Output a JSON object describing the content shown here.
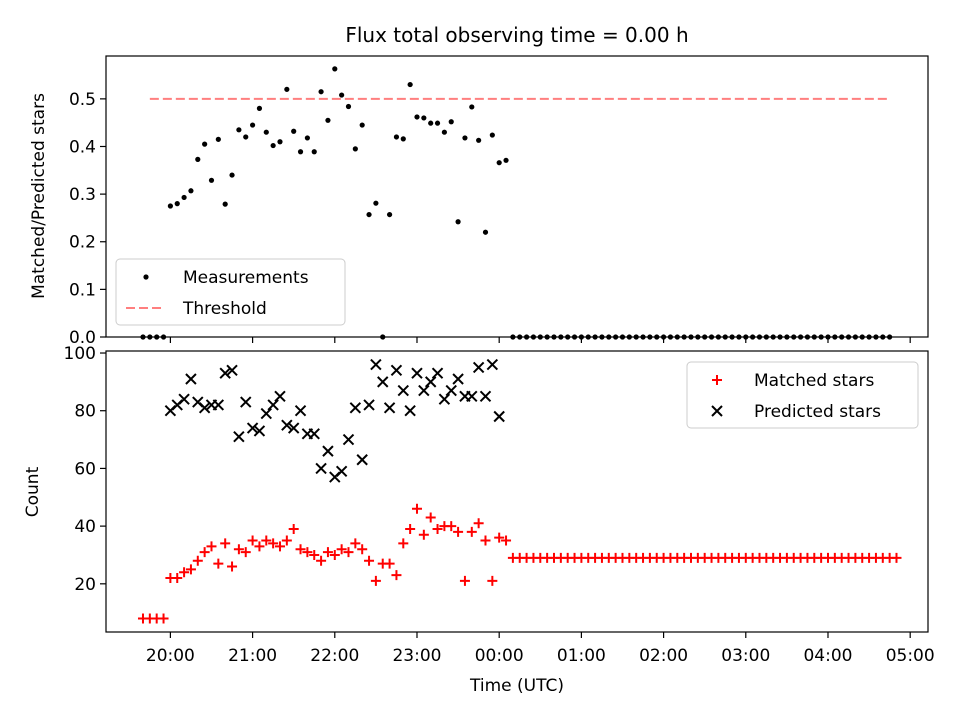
{
  "chart_data": [
    {
      "type": "scatter",
      "title": "Flux total observing time = 0.00 h",
      "xlabel": "",
      "ylabel": "Matched/Predicted stars",
      "ylim": [
        0,
        0.59
      ],
      "xlim": [
        "19:13",
        "05:13"
      ],
      "yticks": [
        "0.0",
        "0.1",
        "0.2",
        "0.3",
        "0.4",
        "0.5"
      ],
      "legend": {
        "placement": "lower-left",
        "entries": [
          "Measurements",
          "Threshold"
        ]
      },
      "series": [
        {
          "name": "Measurements",
          "marker": "dot",
          "color": "#000000",
          "points": [
            [
              "19:40",
              0.0
            ],
            [
              "19:45",
              0.0
            ],
            [
              "19:50",
              0.0
            ],
            [
              "19:55",
              0.0
            ],
            [
              "20:00",
              0.275
            ],
            [
              "20:05",
              0.28
            ],
            [
              "20:10",
              0.293
            ],
            [
              "20:15",
              0.307
            ],
            [
              "20:20",
              0.373
            ],
            [
              "20:25",
              0.405
            ],
            [
              "20:30",
              0.329
            ],
            [
              "20:35",
              0.415
            ],
            [
              "20:40",
              0.279
            ],
            [
              "20:45",
              0.34
            ],
            [
              "20:50",
              0.435
            ],
            [
              "20:55",
              0.42
            ],
            [
              "21:00",
              0.445
            ],
            [
              "21:05",
              0.48
            ],
            [
              "21:10",
              0.43
            ],
            [
              "21:15",
              0.402
            ],
            [
              "21:20",
              0.41
            ],
            [
              "21:25",
              0.52
            ],
            [
              "21:30",
              0.432
            ],
            [
              "21:35",
              0.389
            ],
            [
              "21:40",
              0.418
            ],
            [
              "21:45",
              0.389
            ],
            [
              "21:50",
              0.515
            ],
            [
              "21:55",
              0.455
            ],
            [
              "22:00",
              0.563
            ],
            [
              "22:05",
              0.508
            ],
            [
              "22:10",
              0.484
            ],
            [
              "22:15",
              0.395
            ],
            [
              "22:20",
              0.445
            ],
            [
              "22:25",
              0.257
            ],
            [
              "22:30",
              0.281
            ],
            [
              "22:35",
              0.0
            ],
            [
              "22:40",
              0.257
            ],
            [
              "22:45",
              0.42
            ],
            [
              "22:50",
              0.416
            ],
            [
              "22:55",
              0.53
            ],
            [
              "23:00",
              0.462
            ],
            [
              "23:05",
              0.46
            ],
            [
              "23:10",
              0.449
            ],
            [
              "23:15",
              0.449
            ],
            [
              "23:20",
              0.43
            ],
            [
              "23:25",
              0.452
            ],
            [
              "23:30",
              0.242
            ],
            [
              "23:35",
              0.418
            ],
            [
              "23:40",
              0.483
            ],
            [
              "23:45",
              0.413
            ],
            [
              "23:50",
              0.22
            ],
            [
              "23:55",
              0.424
            ],
            [
              "00:00",
              0.366
            ],
            [
              "00:05",
              0.371
            ]
          ],
          "constant_tail": {
            "start": "00:10",
            "end": "04:45",
            "step_minutes": 5,
            "value": 0.0
          }
        },
        {
          "name": "Threshold",
          "style": "dashed",
          "color": "#ff7f7f",
          "points": [
            [
              "19:45",
              0.5
            ],
            [
              "04:45",
              0.5
            ]
          ]
        }
      ]
    },
    {
      "type": "scatter",
      "title": "",
      "xlabel": "Time (UTC)",
      "ylabel": "Count",
      "ylim": [
        3.3,
        100.7
      ],
      "xlim": [
        "19:13",
        "05:13"
      ],
      "yticks": [
        "20",
        "40",
        "60",
        "80",
        "100"
      ],
      "xticks": [
        "20:00",
        "21:00",
        "22:00",
        "23:00",
        "00:00",
        "01:00",
        "02:00",
        "03:00",
        "04:00",
        "05:00"
      ],
      "legend": {
        "placement": "upper-right",
        "entries": [
          "Matched stars",
          "Predicted stars"
        ]
      },
      "series": [
        {
          "name": "Matched stars",
          "marker": "plus",
          "color": "#ff0000",
          "points": [
            [
              "19:40",
              8
            ],
            [
              "19:45",
              8
            ],
            [
              "19:50",
              8
            ],
            [
              "19:55",
              8
            ],
            [
              "20:00",
              22
            ],
            [
              "20:05",
              22
            ],
            [
              "20:10",
              24
            ],
            [
              "20:15",
              25
            ],
            [
              "20:20",
              28
            ],
            [
              "20:25",
              31
            ],
            [
              "20:30",
              33
            ],
            [
              "20:35",
              27
            ],
            [
              "20:40",
              34
            ],
            [
              "20:45",
              26
            ],
            [
              "20:50",
              32
            ],
            [
              "20:55",
              31
            ],
            [
              "21:00",
              35
            ],
            [
              "21:05",
              33
            ],
            [
              "21:10",
              35
            ],
            [
              "21:15",
              34
            ],
            [
              "21:20",
              33
            ],
            [
              "21:25",
              35
            ],
            [
              "21:30",
              39
            ],
            [
              "21:35",
              32
            ],
            [
              "21:40",
              31
            ],
            [
              "21:45",
              30
            ],
            [
              "21:50",
              28
            ],
            [
              "21:55",
              31
            ],
            [
              "22:00",
              30
            ],
            [
              "22:05",
              32
            ],
            [
              "22:10",
              31
            ],
            [
              "22:15",
              34
            ],
            [
              "22:20",
              32
            ],
            [
              "22:25",
              28
            ],
            [
              "22:30",
              21
            ],
            [
              "22:35",
              27
            ],
            [
              "22:40",
              27
            ],
            [
              "22:45",
              23
            ],
            [
              "22:50",
              34
            ],
            [
              "22:55",
              39
            ],
            [
              "23:00",
              46
            ],
            [
              "23:05",
              37
            ],
            [
              "23:10",
              43
            ],
            [
              "23:15",
              39
            ],
            [
              "23:20",
              40
            ],
            [
              "23:25",
              40
            ],
            [
              "23:30",
              38
            ],
            [
              "23:35",
              21
            ],
            [
              "23:40",
              38
            ],
            [
              "23:45",
              41
            ],
            [
              "23:50",
              35
            ],
            [
              "23:55",
              21
            ],
            [
              "00:00",
              36
            ],
            [
              "00:05",
              35
            ]
          ],
          "constant_tail": {
            "start": "00:10",
            "end": "04:50",
            "step_minutes": 5,
            "value": 29
          }
        },
        {
          "name": "Predicted stars",
          "marker": "x",
          "color": "#000000",
          "points": [
            [
              "20:00",
              80
            ],
            [
              "20:05",
              82
            ],
            [
              "20:10",
              84
            ],
            [
              "20:15",
              91
            ],
            [
              "20:20",
              83
            ],
            [
              "20:25",
              81
            ],
            [
              "20:30",
              82
            ],
            [
              "20:35",
              82
            ],
            [
              "20:40",
              93
            ],
            [
              "20:45",
              94
            ],
            [
              "20:50",
              71
            ],
            [
              "20:55",
              83
            ],
            [
              "21:00",
              74
            ],
            [
              "21:05",
              73
            ],
            [
              "21:10",
              79
            ],
            [
              "21:15",
              82
            ],
            [
              "21:20",
              85
            ],
            [
              "21:25",
              75
            ],
            [
              "21:30",
              74
            ],
            [
              "21:35",
              80
            ],
            [
              "21:40",
              72
            ],
            [
              "21:45",
              72
            ],
            [
              "21:50",
              60
            ],
            [
              "21:55",
              66
            ],
            [
              "22:00",
              57
            ],
            [
              "22:05",
              59
            ],
            [
              "22:10",
              70
            ],
            [
              "22:15",
              81
            ],
            [
              "22:20",
              63
            ],
            [
              "22:25",
              82
            ],
            [
              "22:30",
              96
            ],
            [
              "22:35",
              90
            ],
            [
              "22:40",
              81
            ],
            [
              "22:45",
              94
            ],
            [
              "22:50",
              87
            ],
            [
              "22:55",
              80
            ],
            [
              "23:00",
              93
            ],
            [
              "23:05",
              87
            ],
            [
              "23:10",
              90
            ],
            [
              "23:15",
              93
            ],
            [
              "23:20",
              84
            ],
            [
              "23:25",
              87
            ],
            [
              "23:30",
              91
            ],
            [
              "23:35",
              85
            ],
            [
              "23:40",
              85
            ],
            [
              "23:45",
              95
            ],
            [
              "23:50",
              85
            ],
            [
              "23:55",
              96
            ],
            [
              "00:00",
              78
            ]
          ]
        }
      ]
    }
  ]
}
